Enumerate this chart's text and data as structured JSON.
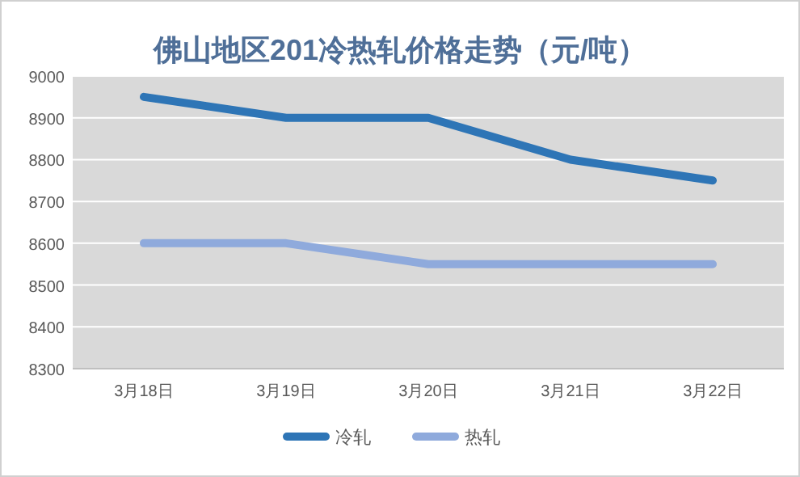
{
  "chart_data": {
    "type": "line",
    "title": "佛山地区201冷热轧价格走势（元/吨）",
    "categories": [
      "3月18日",
      "3月19日",
      "3月20日",
      "3月21日",
      "3月22日"
    ],
    "series": [
      {
        "name": "冷轧",
        "color": "#2e75b6",
        "values": [
          8950,
          8900,
          8900,
          8800,
          8750
        ]
      },
      {
        "name": "热轧",
        "color": "#8faadc",
        "values": [
          8600,
          8600,
          8550,
          8550,
          8550
        ]
      }
    ],
    "ylim": [
      8300,
      9000
    ],
    "yticks": [
      8300,
      8400,
      8500,
      8600,
      8700,
      8800,
      8900,
      9000
    ],
    "grid": "y",
    "legend": "bottom",
    "marker": "none",
    "line_style": "solid"
  }
}
